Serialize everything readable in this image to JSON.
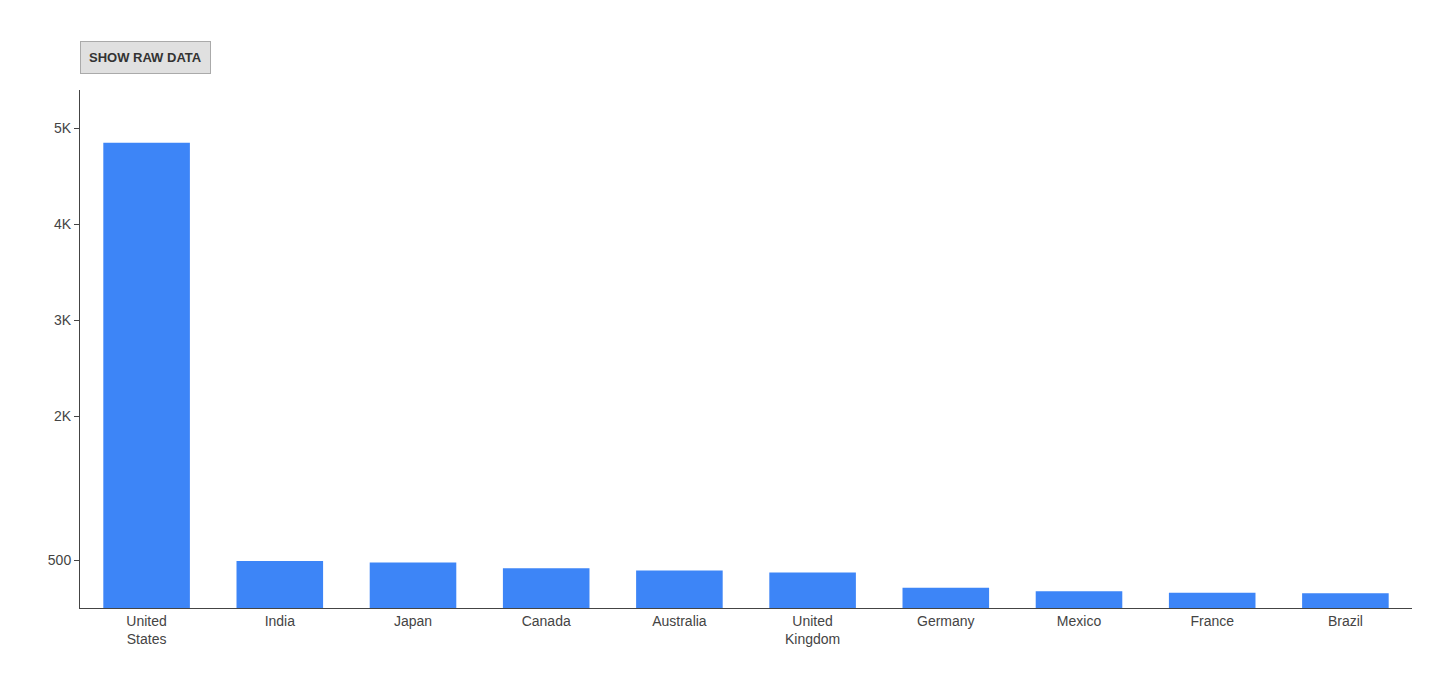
{
  "chart_data": {
    "type": "bar",
    "categories": [
      "United\nStates",
      "India",
      "Japan",
      "Canada",
      "Australia",
      "United\nKingdom",
      "Germany",
      "Mexico",
      "France",
      "Brazil"
    ],
    "values": [
      4850,
      490,
      475,
      415,
      390,
      370,
      210,
      175,
      160,
      155
    ],
    "color": "#3d85f7",
    "ylim": [
      0,
      5400
    ],
    "yticks": [
      500,
      {
        "value": 2000,
        "label": "2K"
      },
      {
        "value": 3000,
        "label": "3K"
      },
      {
        "value": 4000,
        "label": "4K"
      },
      {
        "value": 5000,
        "label": "5K"
      }
    ],
    "grid": false,
    "annotations": [
      "SHOW RAW DATA"
    ]
  }
}
